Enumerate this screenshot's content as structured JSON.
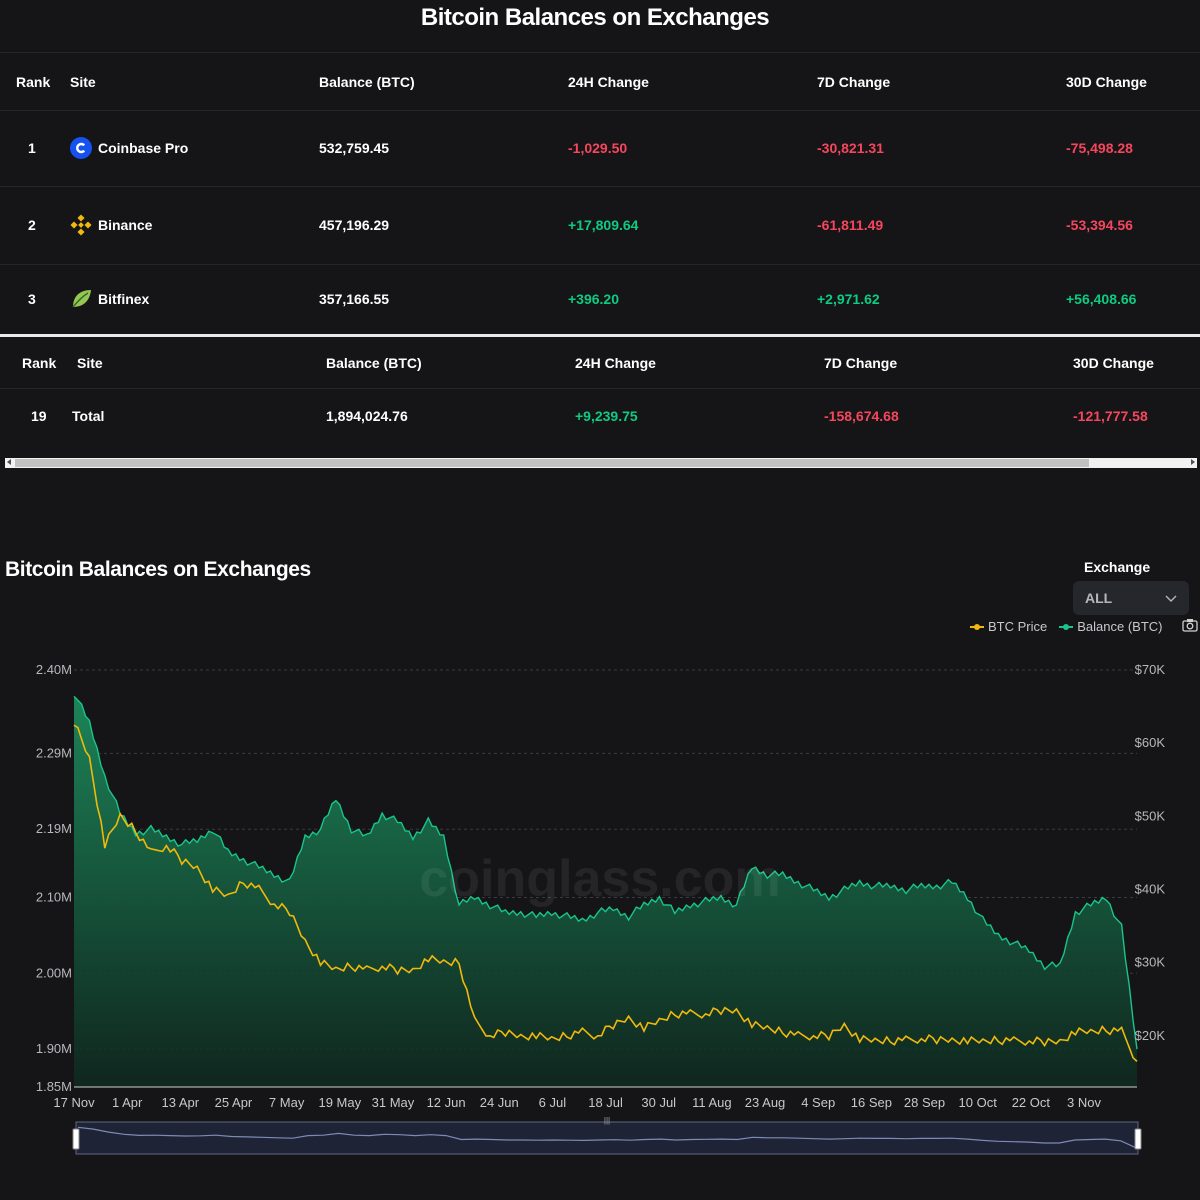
{
  "page_title": "Bitcoin Balances on Exchanges",
  "table": {
    "headers": [
      "Rank",
      "Site",
      "Balance (BTC)",
      "24H Change",
      "7D Change",
      "30D Change"
    ],
    "rows": [
      {
        "rank": "1",
        "site": "Coinbase Pro",
        "icon": "coinbase-icon",
        "balance": "532,759.45",
        "ch24": "-1,029.50",
        "ch7": "-30,821.31",
        "ch30": "-75,498.28"
      },
      {
        "rank": "2",
        "site": "Binance",
        "icon": "binance-icon",
        "balance": "457,196.29",
        "ch24": "+17,809.64",
        "ch7": "-61,811.49",
        "ch30": "-53,394.56"
      },
      {
        "rank": "3",
        "site": "Bitfinex",
        "icon": "bitfinex-icon",
        "balance": "357,166.55",
        "ch24": "+396.20",
        "ch7": "+2,971.62",
        "ch30": "+56,408.66"
      }
    ]
  },
  "total_table": {
    "headers": [
      "Rank",
      "Site",
      "Balance (BTC)",
      "24H Change",
      "7D Change",
      "30D Change"
    ],
    "row": {
      "rank": "19",
      "site": "Total",
      "balance": "1,894,024.76",
      "ch24": "+9,239.75",
      "ch7": "-158,674.68",
      "ch30": "-121,777.58"
    }
  },
  "colors": {
    "negative": "#f6465d",
    "positive": "#0ecb81",
    "btc_price": "#f0b90b",
    "balance": "#19c58b"
  },
  "chart_section": {
    "title": "Bitcoin Balances on Exchanges",
    "exchange_label": "Exchange",
    "exchange_value": "ALL",
    "watermark": "coinglass.com"
  },
  "chart_data": {
    "type": "area",
    "legend": [
      "BTC Price",
      "Balance (BTC)"
    ],
    "legend_position": "top-right",
    "grid": true,
    "x_ticks": [
      "17 Nov",
      "1 Apr",
      "13 Apr",
      "25 Apr",
      "7 May",
      "19 May",
      "31 May",
      "12 Jun",
      "24 Jun",
      "6 Jul",
      "18 Jul",
      "30 Jul",
      "11 Aug",
      "23 Aug",
      "4 Sep",
      "16 Sep",
      "28 Sep",
      "10 Oct",
      "22 Oct",
      "3 Nov"
    ],
    "y_left_ticks": [
      "2.40M",
      "2.29M",
      "2.19M",
      "2.10M",
      "2.00M",
      "1.90M",
      "1.85M"
    ],
    "y_right_ticks": [
      "$70K",
      "$60K",
      "$50K",
      "$40K",
      "$30K",
      "$20K"
    ],
    "y_left_range": [
      1850000,
      2400000
    ],
    "y_right_range": [
      13000,
      70000
    ],
    "series": [
      {
        "name": "Balance (BTC)",
        "axis": "left",
        "values": [
          2370000,
          2330000,
          2260000,
          2210000,
          2185000,
          2190000,
          2180000,
          2170000,
          2175000,
          2190000,
          2160000,
          2150000,
          2140000,
          2130000,
          2120000,
          2180000,
          2190000,
          2230000,
          2190000,
          2180000,
          2210000,
          2200000,
          2180000,
          2200000,
          2180000,
          2090000,
          2100000,
          2090000,
          2080000,
          2080000,
          2075000,
          2080000,
          2075000,
          2070000,
          2080000,
          2085000,
          2075000,
          2090000,
          2100000,
          2080000,
          2090000,
          2095000,
          2100000,
          2090000,
          2140000,
          2130000,
          2130000,
          2120000,
          2110000,
          2100000,
          2110000,
          2120000,
          2115000,
          2115000,
          2110000,
          2115000,
          2115000,
          2120000,
          2100000,
          2070000,
          2050000,
          2040000,
          2030000,
          2010000,
          2010000,
          2080000,
          2090000,
          2100000,
          2060000,
          1900000
        ]
      },
      {
        "name": "BTC Price",
        "axis": "right",
        "values": [
          63000,
          58000,
          46000,
          50000,
          48000,
          45000,
          46000,
          44000,
          43000,
          40000,
          39000,
          41000,
          40000,
          38000,
          37000,
          33000,
          30000,
          29000,
          29500,
          29000,
          29500,
          29000,
          29000,
          30500,
          30000,
          30000,
          22000,
          20000,
          20500,
          20000,
          20000,
          19500,
          20000,
          20500,
          20000,
          21500,
          22500,
          21000,
          22000,
          23000,
          23000,
          23000,
          23500,
          23500,
          21500,
          21000,
          20500,
          20000,
          20000,
          20000,
          21500,
          19500,
          19300,
          19300,
          19400,
          19600,
          19500,
          19500,
          19300,
          19200,
          19400,
          19300,
          19300,
          19200,
          19300,
          20500,
          20500,
          20800,
          20600,
          16500
        ]
      }
    ]
  }
}
